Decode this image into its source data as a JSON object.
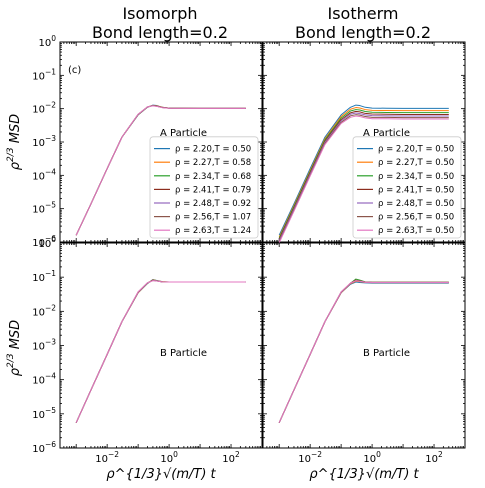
{
  "figure": {
    "panel_letter": "(c)",
    "columns": [
      {
        "title_line1": "Isomorph",
        "title_line2": "Bond length=0.2"
      },
      {
        "title_line1": "Isotherm",
        "title_line2": "Bond length=0.2"
      }
    ],
    "y_axis_label": "ρ^{2/3} MSD",
    "x_axis_label": "ρ^{1/3}√(m/T) t",
    "y_ticks": [
      {
        "exp": 0,
        "label": "10^0"
      },
      {
        "exp": -1,
        "label": "10^-1"
      },
      {
        "exp": -2,
        "label": "10^-2"
      },
      {
        "exp": -3,
        "label": "10^-3"
      },
      {
        "exp": -4,
        "label": "10^-4"
      },
      {
        "exp": -5,
        "label": "10^-5"
      },
      {
        "exp": -6,
        "label": "10^-6"
      }
    ],
    "x_ticks": [
      {
        "exp": -2,
        "label": "10^-2"
      },
      {
        "exp": 0,
        "label": "10^0"
      },
      {
        "exp": 2,
        "label": "10^2"
      }
    ]
  },
  "colors": [
    "#1f77b4",
    "#ff7f0e",
    "#2ca02c",
    "#8c2d1e",
    "#9467bd",
    "#8c564b",
    "#e377c2"
  ],
  "chart_data": [
    {
      "type": "line",
      "panel": "top-left",
      "annotation": "A Particle",
      "x_scale": "log",
      "y_scale": "log",
      "xlim": [
        0.0003,
        1000
      ],
      "ylim": [
        1e-06,
        1
      ],
      "legend": {
        "position": "lower-right",
        "entries": [
          "ρ = 2.20,T = 0.50",
          "ρ = 2.27,T = 0.58",
          "ρ = 2.34,T = 0.68",
          "ρ = 2.41,T = 0.79",
          "ρ = 2.48,T = 0.92",
          "ρ = 2.56,T = 1.07",
          "ρ = 2.63,T = 1.24"
        ]
      },
      "x": [
        0.001,
        0.003,
        0.01,
        0.03,
        0.1,
        0.2,
        0.3,
        0.4,
        0.6,
        1,
        3,
        10,
        30,
        100,
        300
      ],
      "series": [
        {
          "values": [
            1.6e-06,
            1.4e-05,
            0.00016,
            0.0014,
            0.0065,
            0.011,
            0.0128,
            0.0124,
            0.011,
            0.0104,
            0.0103,
            0.0102,
            0.0102,
            0.0102,
            0.0102
          ]
        },
        {
          "values": [
            1.6e-06,
            1.4e-05,
            0.00016,
            0.0014,
            0.0066,
            0.0111,
            0.0126,
            0.0122,
            0.011,
            0.0104,
            0.0103,
            0.0102,
            0.0102,
            0.0102,
            0.0102
          ]
        },
        {
          "values": [
            1.6e-06,
            1.4e-05,
            0.00016,
            0.0014,
            0.0066,
            0.0111,
            0.0125,
            0.0121,
            0.0109,
            0.0104,
            0.0103,
            0.0102,
            0.0102,
            0.0102,
            0.0102
          ]
        },
        {
          "values": [
            1.6e-06,
            1.4e-05,
            0.00016,
            0.0014,
            0.0067,
            0.0112,
            0.0124,
            0.012,
            0.0109,
            0.0104,
            0.0103,
            0.0102,
            0.0102,
            0.0102,
            0.0102
          ]
        },
        {
          "values": [
            1.6e-06,
            1.4e-05,
            0.00016,
            0.0014,
            0.0067,
            0.0112,
            0.0123,
            0.0119,
            0.0108,
            0.0103,
            0.0102,
            0.0102,
            0.0102,
            0.0102,
            0.0102
          ]
        },
        {
          "values": [
            1.6e-06,
            1.4e-05,
            0.00016,
            0.0014,
            0.0068,
            0.0113,
            0.0122,
            0.0118,
            0.0108,
            0.0103,
            0.0102,
            0.0102,
            0.0102,
            0.0102,
            0.0102
          ]
        },
        {
          "values": [
            1.6e-06,
            1.4e-05,
            0.00016,
            0.0014,
            0.0068,
            0.0113,
            0.0121,
            0.0117,
            0.0107,
            0.0103,
            0.0102,
            0.0102,
            0.0102,
            0.0102,
            0.0102
          ]
        }
      ]
    },
    {
      "type": "line",
      "panel": "top-right",
      "annotation": "A Particle",
      "x_scale": "log",
      "y_scale": "log",
      "xlim": [
        0.0003,
        1000
      ],
      "ylim": [
        1e-06,
        1
      ],
      "legend": {
        "position": "lower-right",
        "entries": [
          "ρ = 2.20,T = 0.50",
          "ρ = 2.27,T = 0.50",
          "ρ = 2.34,T = 0.50",
          "ρ = 2.41,T = 0.50",
          "ρ = 2.48,T = 0.50",
          "ρ = 2.56,T = 0.50",
          "ρ = 2.63,T = 0.50"
        ]
      },
      "x": [
        0.001,
        0.003,
        0.01,
        0.03,
        0.1,
        0.2,
        0.3,
        0.4,
        0.6,
        1,
        3,
        10,
        30,
        100,
        300
      ],
      "series": [
        {
          "values": [
            1.6e-06,
            1.4e-05,
            0.00016,
            0.0014,
            0.0065,
            0.011,
            0.0128,
            0.0124,
            0.011,
            0.0104,
            0.0103,
            0.0102,
            0.0102,
            0.0102,
            0.0102
          ]
        },
        {
          "values": [
            1.4e-06,
            1.25e-05,
            0.00014,
            0.00125,
            0.0058,
            0.0096,
            0.0108,
            0.0105,
            0.0094,
            0.0089,
            0.0088,
            0.0087,
            0.0087,
            0.0087,
            0.0087
          ]
        },
        {
          "values": [
            1.3e-06,
            1.15e-05,
            0.00013,
            0.00115,
            0.0052,
            0.0085,
            0.0094,
            0.0091,
            0.0082,
            0.0078,
            0.0077,
            0.0076,
            0.0076,
            0.0076,
            0.0076
          ]
        },
        {
          "values": [
            1.2e-06,
            1.05e-05,
            0.00012,
            0.00105,
            0.0047,
            0.0075,
            0.0083,
            0.008,
            0.0072,
            0.0069,
            0.0068,
            0.0067,
            0.0067,
            0.0067,
            0.0067
          ]
        },
        {
          "values": [
            1.1e-06,
            9.8e-06,
            0.00011,
            0.00098,
            0.0043,
            0.0068,
            0.0074,
            0.0071,
            0.0065,
            0.0062,
            0.0061,
            0.006,
            0.006,
            0.006,
            0.006
          ]
        },
        {
          "values": [
            1e-06,
            9e-06,
            0.0001,
            0.0009,
            0.0039,
            0.0061,
            0.0066,
            0.0064,
            0.0058,
            0.0055,
            0.0055,
            0.0054,
            0.0054,
            0.0054,
            0.0054
          ]
        },
        {
          "values": [
            9.5e-07,
            8.4e-06,
            9.5e-05,
            0.00084,
            0.0036,
            0.0055,
            0.006,
            0.0058,
            0.0053,
            0.005,
            0.005,
            0.0049,
            0.0049,
            0.0049,
            0.0049
          ]
        }
      ]
    },
    {
      "type": "line",
      "panel": "bottom-left",
      "annotation": "B Particle",
      "x_scale": "log",
      "y_scale": "log",
      "xlim": [
        0.0003,
        1000
      ],
      "ylim": [
        1e-06,
        1
      ],
      "x": [
        0.001,
        0.003,
        0.01,
        0.03,
        0.1,
        0.2,
        0.3,
        0.4,
        0.6,
        1,
        3,
        10,
        30,
        100,
        300
      ],
      "series": [
        {
          "values": [
            5.5e-06,
            5e-05,
            0.00055,
            0.005,
            0.035,
            0.065,
            0.085,
            0.08,
            0.074,
            0.072,
            0.072,
            0.072,
            0.072,
            0.072,
            0.072
          ]
        },
        {
          "values": [
            5.5e-06,
            5e-05,
            0.00055,
            0.005,
            0.035,
            0.066,
            0.084,
            0.079,
            0.074,
            0.072,
            0.072,
            0.072,
            0.072,
            0.072,
            0.072
          ]
        },
        {
          "values": [
            5.5e-06,
            5e-05,
            0.00055,
            0.005,
            0.036,
            0.066,
            0.083,
            0.079,
            0.073,
            0.072,
            0.072,
            0.072,
            0.072,
            0.072,
            0.072
          ]
        },
        {
          "values": [
            5.5e-06,
            5e-05,
            0.00055,
            0.005,
            0.036,
            0.067,
            0.082,
            0.078,
            0.073,
            0.072,
            0.072,
            0.072,
            0.072,
            0.072,
            0.072
          ]
        },
        {
          "values": [
            5.5e-06,
            5e-05,
            0.00055,
            0.005,
            0.036,
            0.067,
            0.081,
            0.078,
            0.073,
            0.072,
            0.072,
            0.072,
            0.072,
            0.072,
            0.072
          ]
        },
        {
          "values": [
            5.5e-06,
            5e-05,
            0.00055,
            0.005,
            0.037,
            0.068,
            0.08,
            0.077,
            0.073,
            0.072,
            0.072,
            0.072,
            0.072,
            0.072,
            0.072
          ]
        },
        {
          "values": [
            5.5e-06,
            5e-05,
            0.00055,
            0.005,
            0.037,
            0.068,
            0.079,
            0.077,
            0.073,
            0.072,
            0.072,
            0.072,
            0.072,
            0.072,
            0.072
          ]
        }
      ]
    },
    {
      "type": "line",
      "panel": "bottom-right",
      "annotation": "B Particle",
      "x_scale": "log",
      "y_scale": "log",
      "xlim": [
        0.0003,
        1000
      ],
      "ylim": [
        1e-06,
        1
      ],
      "x": [
        0.001,
        0.003,
        0.01,
        0.03,
        0.1,
        0.2,
        0.3,
        0.4,
        0.6,
        1,
        3,
        10,
        30,
        100,
        300
      ],
      "series": [
        {
          "values": [
            5.5e-06,
            5e-05,
            0.00055,
            0.005,
            0.035,
            0.062,
            0.072,
            0.07,
            0.068,
            0.067,
            0.067,
            0.067,
            0.067,
            0.067,
            0.067
          ]
        },
        {
          "values": [
            5.5e-06,
            5e-05,
            0.00055,
            0.005,
            0.035,
            0.064,
            0.076,
            0.074,
            0.07,
            0.069,
            0.069,
            0.069,
            0.069,
            0.069,
            0.069
          ]
        },
        {
          "values": [
            5.5e-06,
            5e-05,
            0.00055,
            0.005,
            0.036,
            0.066,
            0.088,
            0.082,
            0.073,
            0.071,
            0.071,
            0.071,
            0.071,
            0.071,
            0.071
          ]
        },
        {
          "values": [
            5.5e-06,
            5e-05,
            0.00055,
            0.005,
            0.036,
            0.067,
            0.082,
            0.078,
            0.072,
            0.071,
            0.071,
            0.071,
            0.071,
            0.071,
            0.071
          ]
        },
        {
          "values": [
            5.5e-06,
            5e-05,
            0.00055,
            0.005,
            0.036,
            0.066,
            0.078,
            0.076,
            0.071,
            0.07,
            0.07,
            0.07,
            0.07,
            0.07,
            0.07
          ]
        },
        {
          "values": [
            5.5e-06,
            5e-05,
            0.00055,
            0.005,
            0.037,
            0.066,
            0.08,
            0.077,
            0.072,
            0.07,
            0.07,
            0.07,
            0.07,
            0.07,
            0.07
          ]
        },
        {
          "values": [
            5.5e-06,
            5e-05,
            0.00055,
            0.005,
            0.037,
            0.067,
            0.079,
            0.076,
            0.071,
            0.07,
            0.07,
            0.07,
            0.07,
            0.07,
            0.07
          ]
        }
      ]
    }
  ]
}
